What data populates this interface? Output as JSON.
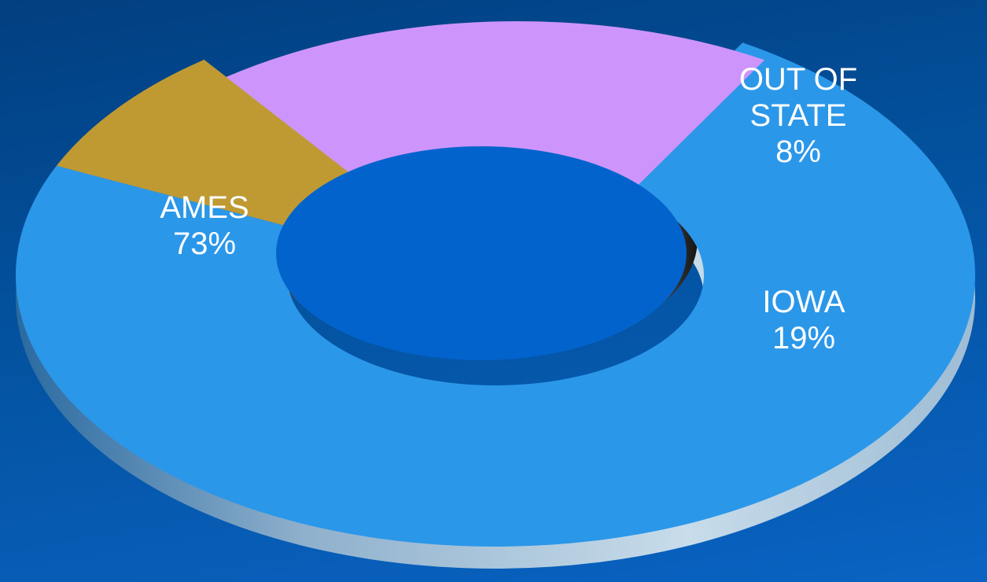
{
  "chart_data": {
    "type": "pie",
    "variant": "3d-donut-exploded",
    "categories": [
      "AMES",
      "OUT OF STATE",
      "IOWA"
    ],
    "values": [
      73,
      8,
      19
    ],
    "unit": "%",
    "exploded": [
      "IOWA"
    ],
    "labels": [
      {
        "lines": [
          "AMES",
          "73%"
        ]
      },
      {
        "lines": [
          "OUT OF",
          "STATE",
          "8%"
        ]
      },
      {
        "lines": [
          "IOWA",
          "19%"
        ]
      }
    ],
    "colors": {
      "AMES": "#2b97e9",
      "OUT OF STATE": "#bf9a33",
      "IOWA": "#cd95fb",
      "background": "#0356ab",
      "hole": "#0363cc"
    },
    "legend": "none",
    "grid": false
  }
}
